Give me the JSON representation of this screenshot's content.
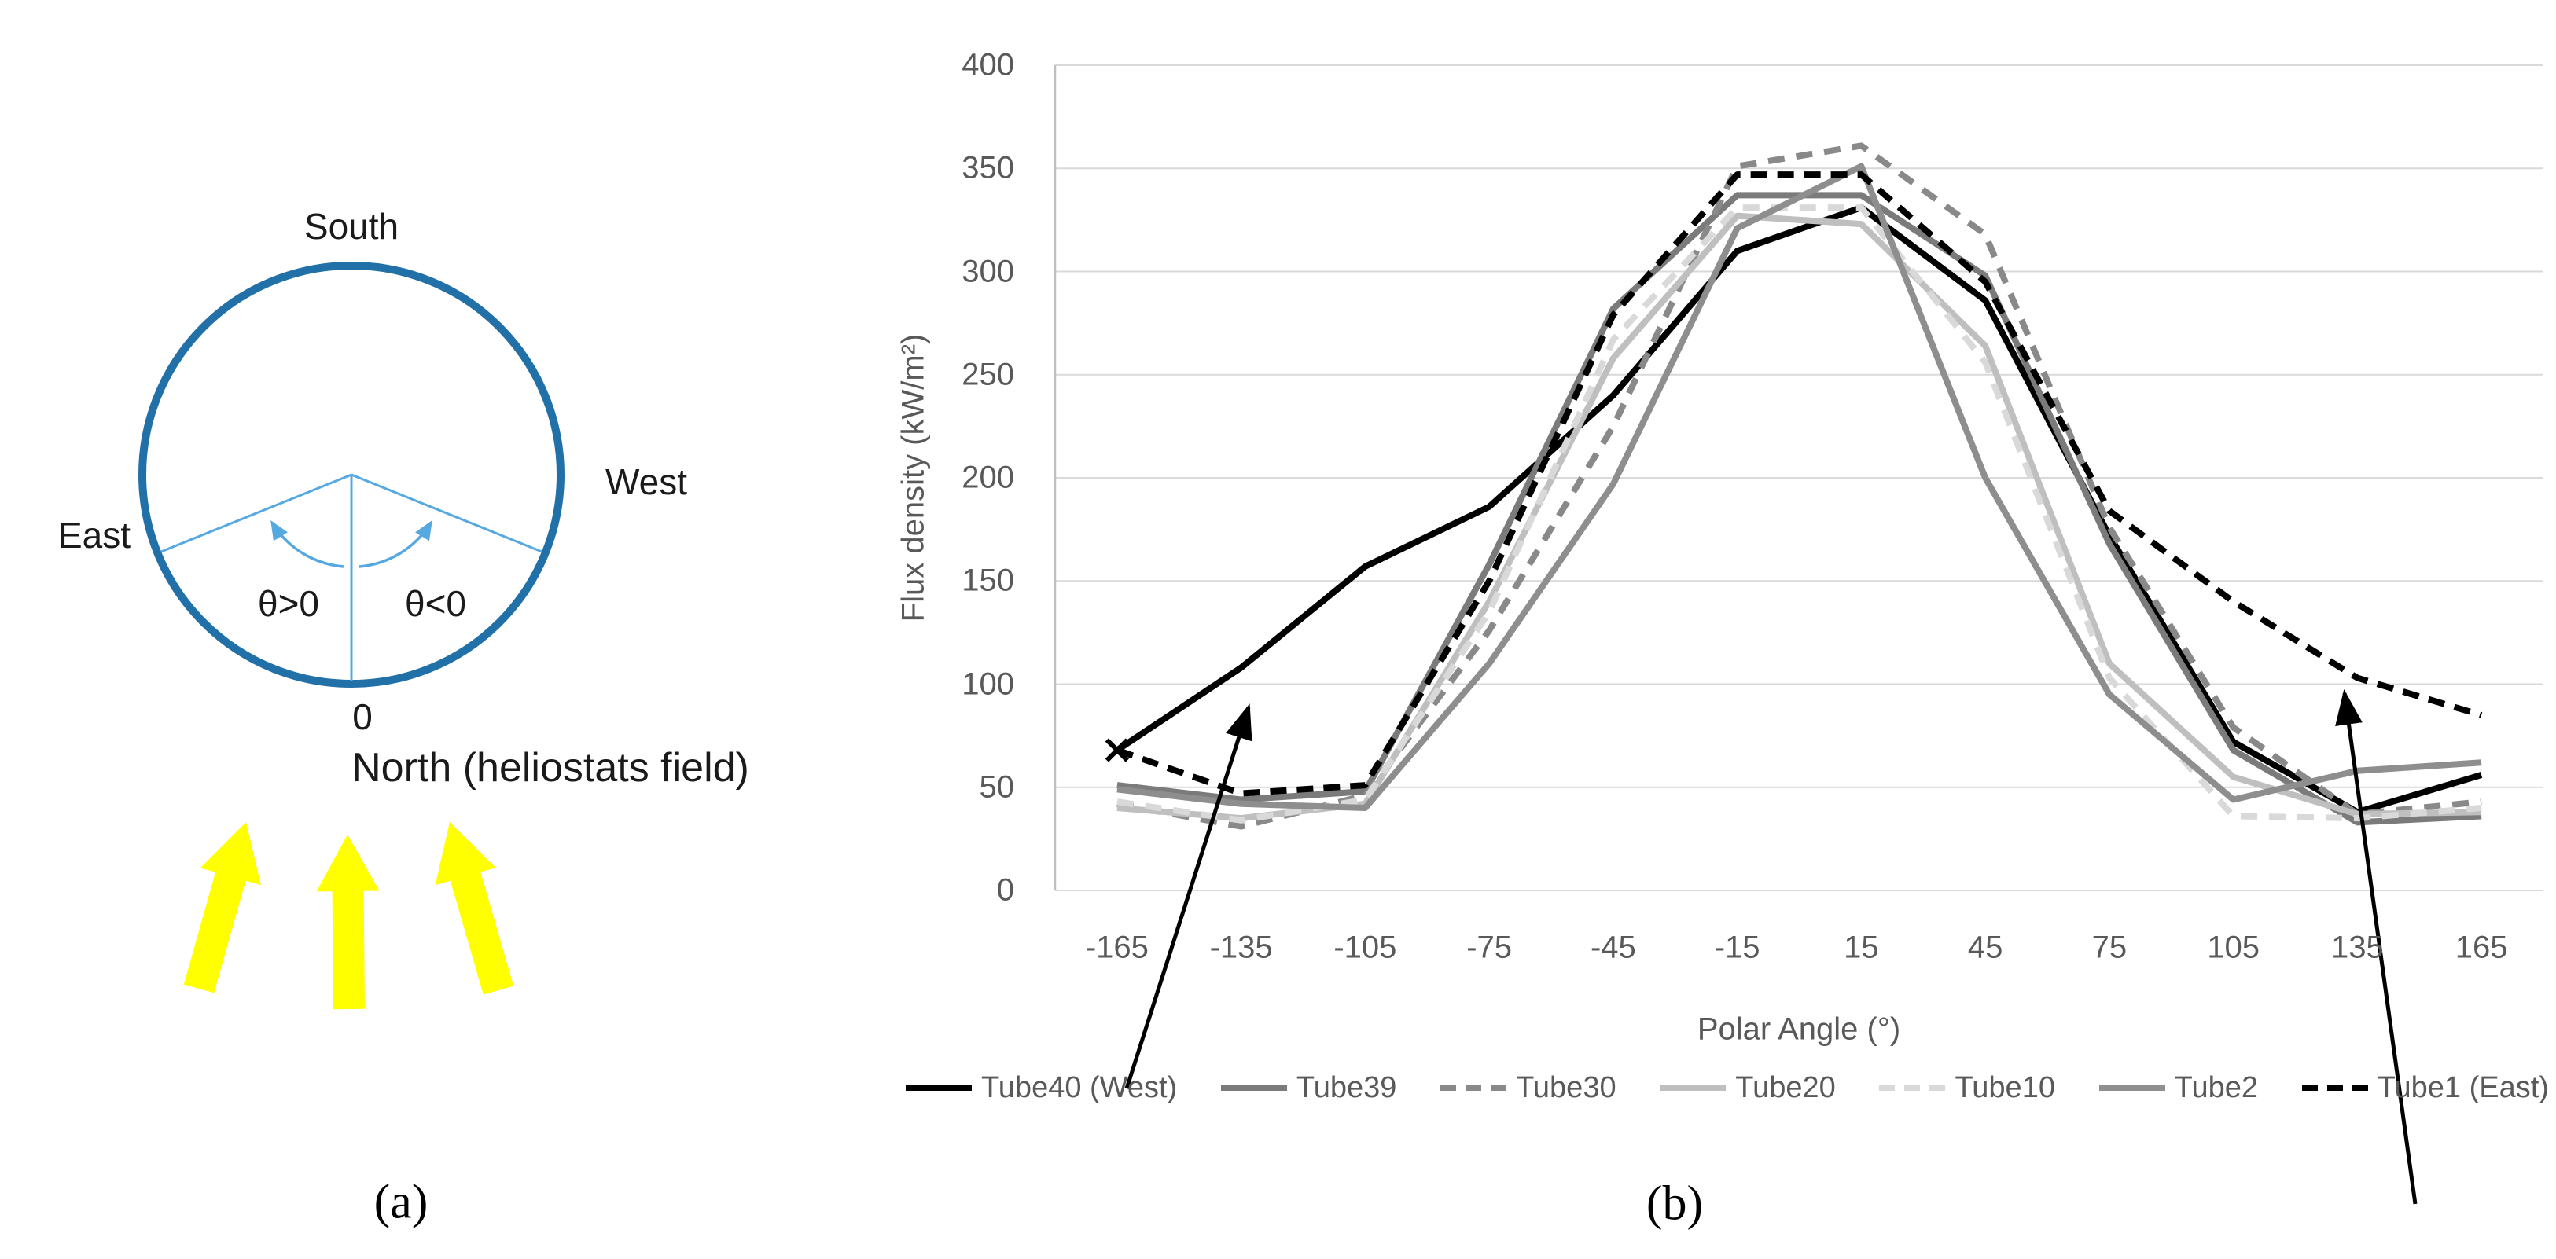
{
  "figure": {
    "caption_a": "(a)",
    "caption_b": "(b)"
  },
  "panel_a": {
    "labels": {
      "south": "South",
      "east": "East",
      "west": "West",
      "theta_pos": "θ>0",
      "theta_neg": "θ<0",
      "zero": "0",
      "north": "North (heliostats field)"
    },
    "colors": {
      "circle": "#2170A8",
      "guides": "#56A8E0",
      "sun_arrows": "#FFFF00"
    }
  },
  "chart_data": {
    "type": "line",
    "title": "",
    "xlabel": "Polar Angle (°)",
    "ylabel": "Flux density (kW/m²)",
    "x": [
      -165,
      -135,
      -105,
      -75,
      -45,
      -15,
      15,
      45,
      75,
      105,
      135,
      165
    ],
    "x_tick_labels": [
      "-165",
      "-135",
      "-105",
      "-75",
      "-45",
      "-15",
      "15",
      "45",
      "75",
      "105",
      "135",
      "165"
    ],
    "ylim": [
      0,
      400
    ],
    "ytick_step": 50,
    "grid": true,
    "legend_position": "bottom",
    "gridline_color": "#D9D9D9",
    "axis_line_color": "#BFBFBF",
    "tick_color": "#595959",
    "series": [
      {
        "name": "Tube40 (West)",
        "color": "#000000",
        "dash": "none",
        "width": 8,
        "marker_first": "x",
        "values": [
          68,
          108,
          157,
          186,
          240,
          310,
          331,
          286,
          172,
          72,
          38,
          56
        ]
      },
      {
        "name": "Tube39",
        "color": "#7B7B7B",
        "dash": "none",
        "width": 8,
        "values": [
          51,
          44,
          48,
          158,
          282,
          337,
          337,
          298,
          168,
          68,
          33,
          36
        ]
      },
      {
        "name": "Tube30",
        "color": "#898989",
        "dash": "21 15",
        "width": 8,
        "values": [
          42,
          31,
          46,
          126,
          225,
          351,
          361,
          318,
          176,
          79,
          37,
          43
        ]
      },
      {
        "name": "Tube20",
        "color": "#BFBFBF",
        "dash": "none",
        "width": 8,
        "values": [
          40,
          35,
          42,
          140,
          258,
          327,
          323,
          264,
          110,
          55,
          37,
          38
        ]
      },
      {
        "name": "Tube10",
        "color": "#D9D9D9",
        "dash": "21 15",
        "width": 8,
        "values": [
          43,
          34,
          44,
          135,
          267,
          331,
          331,
          256,
          103,
          36,
          35,
          40
        ]
      },
      {
        "name": "Tube2",
        "color": "#8E8E8E",
        "dash": "none",
        "width": 8,
        "values": [
          49,
          42,
          40,
          110,
          197,
          321,
          351,
          200,
          95,
          44,
          58,
          62
        ]
      },
      {
        "name": "Tube1 (East)",
        "color": "#000000",
        "dash": "21 13",
        "width": 8,
        "values": [
          68,
          47,
          51,
          150,
          279,
          347,
          347,
          295,
          184,
          140,
          103,
          85
        ]
      }
    ],
    "annotations": [
      {
        "type": "arrow",
        "points_to_series": "Tube40 (West)",
        "from": [
          1433,
          1385
        ],
        "to": [
          1588,
          900
        ]
      },
      {
        "type": "arrow",
        "points_to_series": "Tube1 (East)",
        "from": [
          3072,
          1532
        ],
        "to": [
          2982,
          882
        ]
      }
    ]
  }
}
